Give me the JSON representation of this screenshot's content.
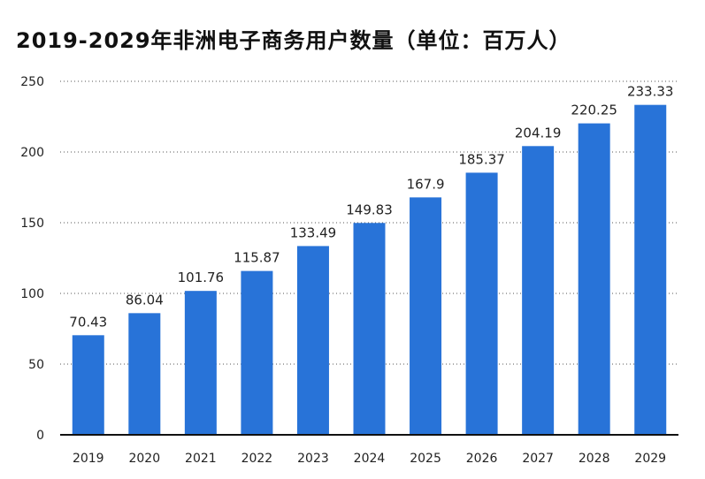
{
  "chart_data": {
    "type": "bar",
    "title": "2019-2029年非洲电子商务用户数量（单位：百万人）",
    "categories": [
      "2019",
      "2020",
      "2021",
      "2022",
      "2023",
      "2024",
      "2025",
      "2026",
      "2027",
      "2028",
      "2029"
    ],
    "values": [
      70.43,
      86.04,
      101.76,
      115.87,
      133.49,
      149.83,
      167.9,
      185.37,
      204.19,
      220.25,
      233.33
    ],
    "value_labels": [
      "70.43",
      "86.04",
      "101.76",
      "115.87",
      "133.49",
      "149.83",
      "167.9",
      "185.37",
      "204.19",
      "220.25",
      "233.33"
    ],
    "ylim": [
      0,
      250
    ],
    "yticks": [
      "0",
      "50",
      "100",
      "150",
      "200",
      "250"
    ],
    "grid": true,
    "bar_color": "#2873d8"
  }
}
